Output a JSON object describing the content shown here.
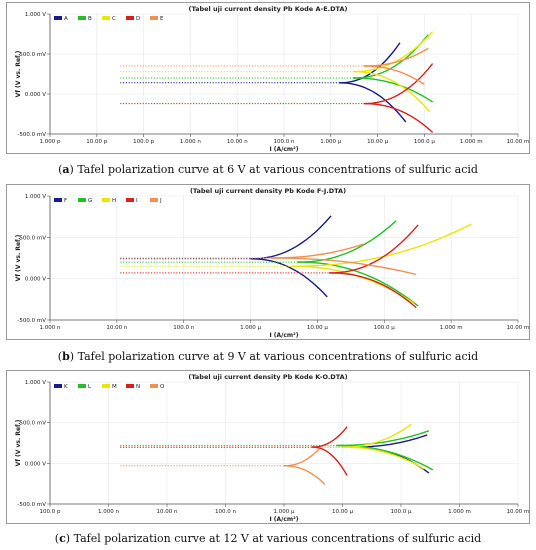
{
  "panels": [
    {
      "title": "(Tabel uji current density Pb Kode A-E.DTA)",
      "caption_tag": "a",
      "caption_text": "Tafel polarization curve at 6 V at various concentrations of sulfuric acid"
    },
    {
      "title": "(Tabel uji current density Pb Kode F-J.DTA)",
      "caption_tag": "b",
      "caption_text": "Tafel polarization curve at 9 V at various concentrations of sulfuric acid"
    },
    {
      "title": "(Tabel uji current density Pb Kode K-O.DTA)",
      "caption_tag": "c",
      "caption_text": "Tafel polarization curve at 12 V at various concentrations of sulfuric acid"
    }
  ],
  "chart_data": [
    {
      "type": "line",
      "title": "(Tabel uji current density Pb Kode A-E.DTA)",
      "xlabel": "I (A/cm²)",
      "ylabel": "Vf (V vs. Ref.)",
      "x_scale": "log",
      "xlim": [
        1e-12,
        0.01
      ],
      "ylim": [
        -0.5,
        1.0
      ],
      "x_ticks": [
        {
          "v": 1e-12,
          "label": "1.000 p"
        },
        {
          "v": 1e-11,
          "label": "10.00 p"
        },
        {
          "v": 1e-10,
          "label": "100.0 p"
        },
        {
          "v": 1e-09,
          "label": "1.000 n"
        },
        {
          "v": 1e-08,
          "label": "10.00 n"
        },
        {
          "v": 1e-07,
          "label": "100.0 n"
        },
        {
          "v": 1e-06,
          "label": "1.000 µ"
        },
        {
          "v": 1e-05,
          "label": "10.00 µ"
        },
        {
          "v": 0.0001,
          "label": "100.0 µ"
        },
        {
          "v": 0.001,
          "label": "1.000 m"
        },
        {
          "v": 0.01,
          "label": "10.00 m"
        }
      ],
      "y_ticks": [
        {
          "v": 1.0,
          "label": "1.000 V"
        },
        {
          "v": 0.5,
          "label": "500.0 mV"
        },
        {
          "v": 0.0,
          "label": "0.000 V"
        },
        {
          "v": -0.5,
          "label": "-500.0 mV"
        }
      ],
      "legend_position": "top-left",
      "series": [
        {
          "name": "A",
          "color": "#1a1a8c",
          "ecorr": 0.14,
          "icorr": 1.5e-06,
          "anodic_end": [
            3e-05,
            0.64
          ],
          "cathodic_end": [
            4e-05,
            -0.35
          ]
        },
        {
          "name": "B",
          "color": "#22c022",
          "ecorr": 0.2,
          "icorr": 3e-06,
          "anodic_end": [
            0.00012,
            0.74
          ],
          "cathodic_end": [
            0.00015,
            -0.1
          ]
        },
        {
          "name": "C",
          "color": "#e8e800",
          "ecorr": 0.28,
          "icorr": 3e-06,
          "anodic_end": [
            0.00015,
            0.78
          ],
          "cathodic_end": [
            0.00013,
            -0.22
          ]
        },
        {
          "name": "D",
          "color": "#d82020",
          "ecorr": -0.12,
          "icorr": 5e-06,
          "anodic_end": [
            0.00015,
            0.38
          ],
          "cathodic_end": [
            0.00015,
            -0.48
          ]
        },
        {
          "name": "E",
          "color": "#f09050",
          "ecorr": 0.35,
          "icorr": 5e-06,
          "anodic_end": [
            0.00012,
            0.57
          ],
          "cathodic_end": [
            0.0001,
            0.12
          ]
        }
      ]
    },
    {
      "type": "line",
      "title": "(Tabel uji current density Pb Kode F-J.DTA)",
      "xlabel": "I (A/cm²)",
      "ylabel": "Vf (V vs. Ref.)",
      "x_scale": "log",
      "xlim": [
        1e-09,
        0.01
      ],
      "ylim": [
        -0.5,
        1.0
      ],
      "x_ticks": [
        {
          "v": 1e-09,
          "label": "1.000 n"
        },
        {
          "v": 1e-08,
          "label": "10.00 n"
        },
        {
          "v": 1e-07,
          "label": "100.0 n"
        },
        {
          "v": 1e-06,
          "label": "1.000 µ"
        },
        {
          "v": 1e-05,
          "label": "10.00 µ"
        },
        {
          "v": 0.0001,
          "label": "100.0 µ"
        },
        {
          "v": 0.001,
          "label": "1.000 m"
        },
        {
          "v": 0.01,
          "label": "10.00 m"
        }
      ],
      "y_ticks": [
        {
          "v": 1.0,
          "label": "1.000 V"
        },
        {
          "v": 0.5,
          "label": "500.0 mV"
        },
        {
          "v": 0.0,
          "label": "0.000 V"
        },
        {
          "v": -0.5,
          "label": "-500.0 mV"
        }
      ],
      "legend_position": "top-left",
      "series": [
        {
          "name": "F",
          "color": "#1a1a8c",
          "ecorr": 0.24,
          "icorr": 1e-06,
          "anodic_end": [
            1.6e-05,
            0.76
          ],
          "cathodic_end": [
            1.4e-05,
            -0.22
          ]
        },
        {
          "name": "G",
          "color": "#22c022",
          "ecorr": 0.2,
          "icorr": 5e-06,
          "anodic_end": [
            0.00015,
            0.7
          ],
          "cathodic_end": [
            0.00032,
            -0.33
          ]
        },
        {
          "name": "H",
          "color": "#e8e800",
          "ecorr": 0.15,
          "icorr": 4e-06,
          "anodic_end": [
            0.002,
            0.66
          ],
          "cathodic_end": [
            0.00028,
            -0.3
          ]
        },
        {
          "name": "I",
          "color": "#d82020",
          "ecorr": 0.07,
          "icorr": 1.5e-05,
          "anodic_end": [
            0.00032,
            0.65
          ],
          "cathodic_end": [
            0.0003,
            -0.35
          ]
        },
        {
          "name": "J",
          "color": "#f09050",
          "ecorr": 0.25,
          "icorr": 2e-06,
          "anodic_end": [
            5e-05,
            0.42
          ],
          "cathodic_end": [
            0.0003,
            0.05
          ]
        }
      ]
    },
    {
      "type": "line",
      "title": "(Tabel uji current density Pb Kode K-O.DTA)",
      "xlabel": "I (A/cm²)",
      "ylabel": "Vf (V vs. Ref.)",
      "x_scale": "log",
      "xlim": [
        1e-10,
        0.01
      ],
      "ylim": [
        -0.5,
        1.0
      ],
      "x_ticks": [
        {
          "v": 1e-10,
          "label": "100.0 p"
        },
        {
          "v": 1e-09,
          "label": "1.000 n"
        },
        {
          "v": 1e-08,
          "label": "10.00 n"
        },
        {
          "v": 1e-07,
          "label": "100.0 n"
        },
        {
          "v": 1e-06,
          "label": "1.000 µ"
        },
        {
          "v": 1e-05,
          "label": "10.00 µ"
        },
        {
          "v": 0.0001,
          "label": "100.0 µ"
        },
        {
          "v": 0.001,
          "label": "1.000 m"
        },
        {
          "v": 0.01,
          "label": "10.00 m"
        }
      ],
      "y_ticks": [
        {
          "v": 1.0,
          "label": "1.000 V"
        },
        {
          "v": 0.5,
          "label": "500.0 mV"
        },
        {
          "v": 0.0,
          "label": "0.000 V"
        },
        {
          "v": -0.5,
          "label": "-500.0 mV"
        }
      ],
      "legend_position": "top-left",
      "series": [
        {
          "name": "K",
          "color": "#1a1a8c",
          "ecorr": 0.2,
          "icorr": 1.5e-05,
          "anodic_end": [
            0.00028,
            0.35
          ],
          "cathodic_end": [
            0.0003,
            -0.12
          ]
        },
        {
          "name": "L",
          "color": "#22c022",
          "ecorr": 0.22,
          "icorr": 8e-06,
          "anodic_end": [
            0.0003,
            0.4
          ],
          "cathodic_end": [
            0.00035,
            -0.08
          ]
        },
        {
          "name": "M",
          "color": "#e8e800",
          "ecorr": 0.2,
          "icorr": 1e-05,
          "anodic_end": [
            0.00015,
            0.48
          ],
          "cathodic_end": [
            0.00025,
            -0.07
          ]
        },
        {
          "name": "N",
          "color": "#d82020",
          "ecorr": 0.2,
          "icorr": 3e-06,
          "anodic_end": [
            1.2e-05,
            0.45
          ],
          "cathodic_end": [
            1.2e-05,
            -0.15
          ]
        },
        {
          "name": "O",
          "color": "#f09050",
          "ecorr": -0.03,
          "icorr": 1e-06,
          "anodic_end": [
            4e-06,
            0.18
          ],
          "cathodic_end": [
            5e-06,
            -0.26
          ]
        }
      ]
    }
  ]
}
